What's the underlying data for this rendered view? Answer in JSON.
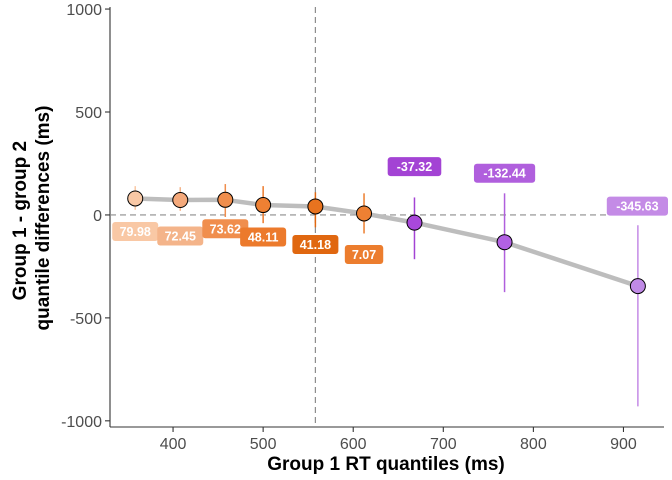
{
  "chart_data": {
    "type": "scatter",
    "xlabel": "Group 1 RT quantiles (ms)",
    "ylabel_lines": [
      "Group 1 - group 2",
      "quantile differences (ms)"
    ],
    "xlim": [
      330,
      945
    ],
    "ylim": [
      -1030,
      1010
    ],
    "x_ticks": [
      400,
      500,
      600,
      700,
      800,
      900
    ],
    "y_ticks": [
      -1000,
      -500,
      0,
      500,
      1000
    ],
    "grid": false,
    "reference_lines": {
      "horizontal_y": 0,
      "vertical_x": 558
    },
    "points": [
      {
        "x": 358,
        "y": 79.98,
        "ci": [
          25,
          140
        ],
        "label": "79.98",
        "fill": "#f9c8a5",
        "label_color": "#f9c8a5"
      },
      {
        "x": 408,
        "y": 72.45,
        "ci": [
          20,
          135
        ],
        "label": "72.45",
        "fill": "#f4a97b",
        "label_color": "#f4b48a"
      },
      {
        "x": 458,
        "y": 73.62,
        "ci": [
          -10,
          150
        ],
        "label": "73.62",
        "fill": "#f08e4d",
        "label_color": "#f08e4d"
      },
      {
        "x": 500,
        "y": 48.11,
        "ci": [
          -40,
          140
        ],
        "label": "48.11",
        "fill": "#ee8033",
        "label_color": "#ec7a2c"
      },
      {
        "x": 558,
        "y": 41.18,
        "ci": [
          -60,
          110
        ],
        "label": "41.18",
        "fill": "#e8731f",
        "label_color": "#e06710"
      },
      {
        "x": 612,
        "y": 7.07,
        "ci": [
          -90,
          105
        ],
        "label": "7.07",
        "fill": "#ee8033",
        "label_color": "#ec7d2e"
      },
      {
        "x": 668,
        "y": -37.32,
        "ci": [
          -215,
          85
        ],
        "label": "-37.32",
        "fill": "#a948db",
        "label_color": "#a343d4"
      },
      {
        "x": 768,
        "y": -132.44,
        "ci": [
          -375,
          105
        ],
        "label": "-132.44",
        "fill": "#b261e3",
        "label_color": "#b05fdd"
      },
      {
        "x": 916,
        "y": -345.63,
        "ci": [
          -930,
          -50
        ],
        "label": "-345.63",
        "fill": "#c08ae6",
        "label_color": "#c48be6"
      }
    ],
    "trend_line_color": "#bdbdbd"
  }
}
